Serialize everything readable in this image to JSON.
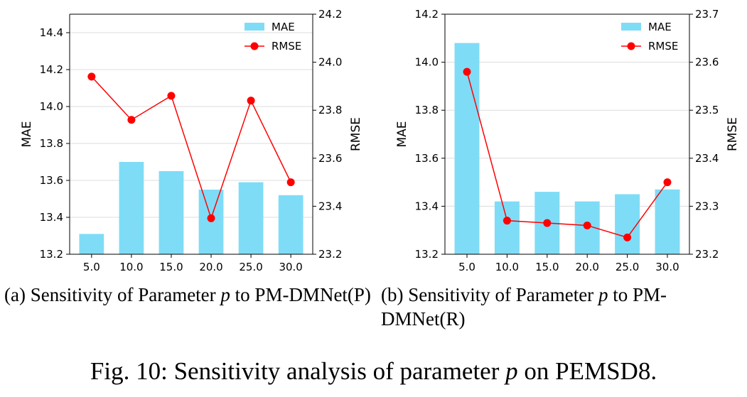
{
  "chart_data": [
    {
      "type": "bar+line",
      "categories": [
        "5.0",
        "10.0",
        "15.0",
        "20.0",
        "25.0",
        "30.0"
      ],
      "series": [
        {
          "name": "MAE",
          "axis": "left",
          "kind": "bar",
          "color": "#7fdcf7",
          "values": [
            13.31,
            13.7,
            13.65,
            13.55,
            13.59,
            13.52
          ]
        },
        {
          "name": "RMSE",
          "axis": "right",
          "kind": "line",
          "color": "#ff0000",
          "values": [
            23.94,
            23.76,
            23.86,
            23.35,
            23.84,
            23.5
          ]
        }
      ],
      "ylabel": "MAE",
      "y2label": "RMSE",
      "ylim": [
        13.2,
        14.5
      ],
      "y2lim": [
        23.2,
        24.2
      ],
      "yticks": [
        "13.2",
        "13.4",
        "13.6",
        "13.8",
        "14.0",
        "14.2",
        "14.4"
      ],
      "y2ticks": [
        "23.2",
        "23.4",
        "23.6",
        "23.8",
        "24.0",
        "24.2"
      ],
      "grid": "horizontal",
      "legend": "top-right",
      "caption_prefix": "(a) Sensitivity of Parameter ",
      "caption_param": "p",
      "caption_suffix": " to PM-DMNet(P)"
    },
    {
      "type": "bar+line",
      "categories": [
        "5.0",
        "10.0",
        "15.0",
        "20.0",
        "25.0",
        "30.0"
      ],
      "series": [
        {
          "name": "MAE",
          "axis": "left",
          "kind": "bar",
          "color": "#7fdcf7",
          "values": [
            14.08,
            13.42,
            13.46,
            13.42,
            13.45,
            13.47
          ]
        },
        {
          "name": "RMSE",
          "axis": "right",
          "kind": "line",
          "color": "#ff0000",
          "values": [
            23.58,
            23.27,
            23.265,
            23.26,
            23.235,
            23.35
          ]
        }
      ],
      "ylabel": "MAE",
      "y2label": "RMSE",
      "ylim": [
        13.2,
        14.2
      ],
      "y2lim": [
        23.2,
        23.7
      ],
      "yticks": [
        "13.2",
        "13.4",
        "13.6",
        "13.8",
        "14.0",
        "14.2"
      ],
      "y2ticks": [
        "23.2",
        "23.3",
        "23.4",
        "23.5",
        "23.6",
        "23.7"
      ],
      "grid": "horizontal",
      "legend": "top-right",
      "caption_prefix": "(b) Sensitivity of Parameter ",
      "caption_param": "p",
      "caption_suffix": " to PM-DMNet(R)"
    }
  ],
  "figure": {
    "prefix": "Fig. 10: Sensitivity analysis of parameter ",
    "param": "p",
    "suffix": " on PEMSD8."
  }
}
